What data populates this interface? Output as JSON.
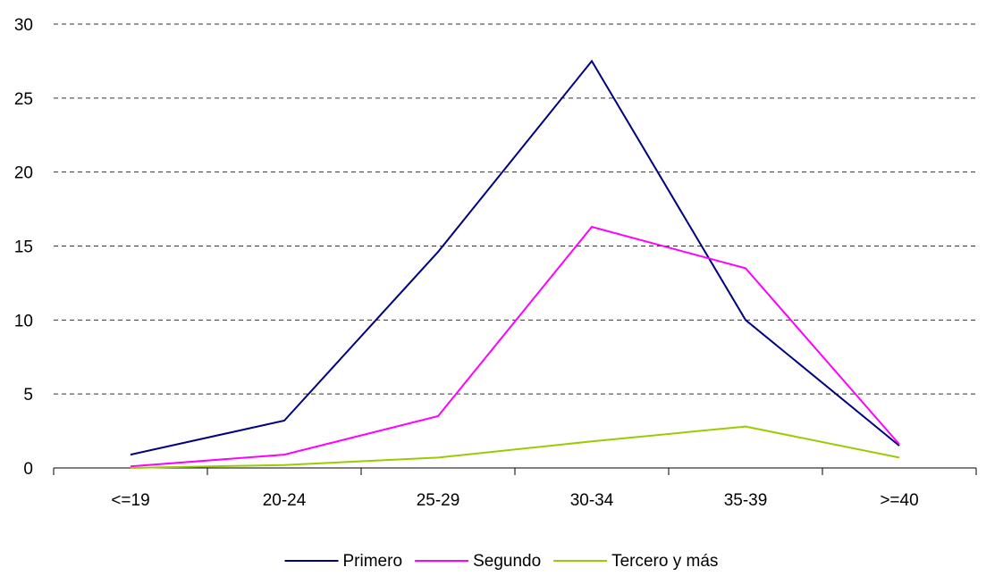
{
  "chart_data": {
    "type": "line",
    "title": "",
    "xlabel": "",
    "ylabel": "",
    "categories": [
      "<=19",
      "20-24",
      "25-29",
      "30-34",
      "35-39",
      ">=40"
    ],
    "ylim": [
      0,
      30
    ],
    "yticks": [
      0,
      5,
      10,
      15,
      20,
      25,
      30
    ],
    "grid": "horizontal dashed",
    "legend_position": "bottom",
    "series": [
      {
        "name": "Primero",
        "color": "#000080",
        "values": [
          0.9,
          3.2,
          14.6,
          27.5,
          10.0,
          1.5
        ]
      },
      {
        "name": "Segundo",
        "color": "#ff00ff",
        "values": [
          0.1,
          0.9,
          3.5,
          16.3,
          13.5,
          1.6
        ]
      },
      {
        "name": "Tercero y más",
        "color": "#99cc00",
        "values": [
          0.0,
          0.2,
          0.7,
          1.8,
          2.8,
          0.7
        ]
      }
    ]
  }
}
